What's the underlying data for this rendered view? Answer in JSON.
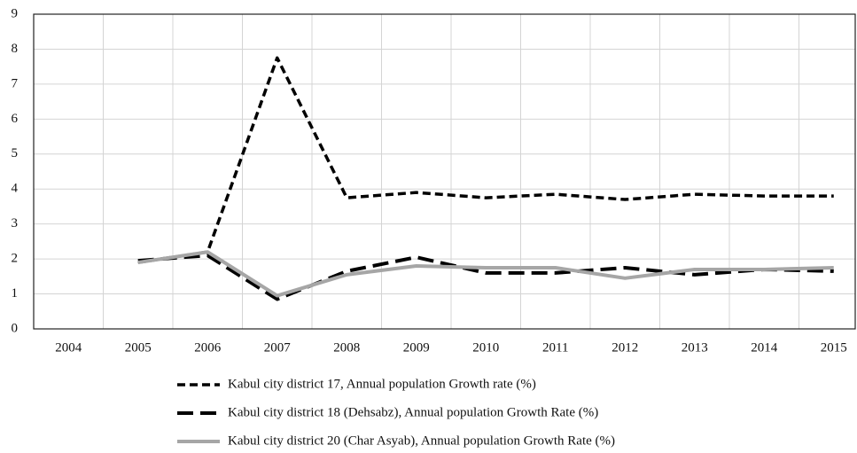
{
  "chart_data": {
    "type": "line",
    "categories": [
      "2004",
      "2005",
      "2006",
      "2007",
      "2008",
      "2009",
      "2010",
      "2011",
      "2012",
      "2013",
      "2014",
      "2015"
    ],
    "series": [
      {
        "name": "Kabul city district 17, Annual population Growth rate (%)",
        "color": "#000000",
        "dash": "short",
        "values": [
          null,
          1.9,
          2.2,
          7.75,
          3.75,
          3.9,
          3.75,
          3.85,
          3.7,
          3.85,
          3.8,
          3.8
        ]
      },
      {
        "name": "Kabul city district 18 (Dehsabz), Annual population Growth Rate (%)",
        "color": "#000000",
        "dash": "long",
        "values": [
          null,
          1.95,
          2.1,
          0.85,
          1.65,
          2.05,
          1.6,
          1.6,
          1.75,
          1.55,
          1.7,
          1.65
        ]
      },
      {
        "name": "Kabul city district 20 (Char Asyab), Annual population Growth Rate (%)",
        "color": "#a6a6a6",
        "dash": "solid",
        "values": [
          null,
          1.9,
          2.2,
          0.95,
          1.55,
          1.8,
          1.75,
          1.75,
          1.45,
          1.7,
          1.7,
          1.75
        ]
      }
    ],
    "ylim": [
      0,
      9
    ],
    "yticks": [
      0,
      1,
      2,
      3,
      4,
      5,
      6,
      7,
      8,
      9
    ],
    "grid": true,
    "legend": "bottom"
  }
}
